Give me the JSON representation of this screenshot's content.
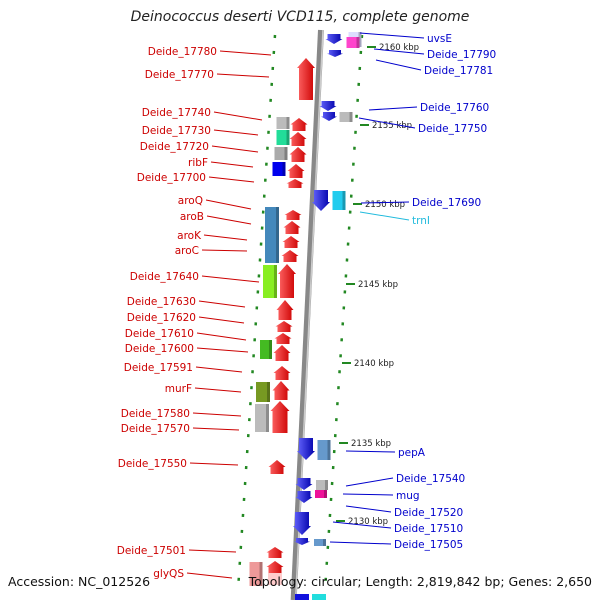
{
  "title": "Deinococcus deserti VCD115, complete genome",
  "accession": "Accession: NC_012526",
  "topology": "Topology: circular; Length: 2,819,842 bp; Genes: 2,650",
  "colors": {
    "plus_label": "#cc0000",
    "minus_label": "#0000cc",
    "trna_label": "#22bbdd",
    "plus_arrow": "#ee1111",
    "minus_arrow": "#1111dd",
    "backbone": "#888888",
    "tick": "#228822",
    "ruler": "#222222"
  },
  "scale_labels": [
    "2160 kbp",
    "2155 kbp",
    "2150 kbp",
    "2145 kbp",
    "2140 kbp",
    "2135 kbp",
    "2130 kbp"
  ],
  "plus_labels": [
    "Deide_17780",
    "Deide_17770",
    "Deide_17740",
    "Deide_17730",
    "Deide_17720",
    "ribF",
    "Deide_17700",
    "aroQ",
    "aroB",
    "aroK",
    "aroC",
    "Deide_17640",
    "Deide_17630",
    "Deide_17620",
    "Deide_17610",
    "Deide_17600",
    "Deide_17591",
    "murF",
    "Deide_17580",
    "Deide_17570",
    "Deide_17550",
    "Deide_17501",
    "glyQS"
  ],
  "minus_labels": [
    "uvsE",
    "Deide_17790",
    "Deide_17781",
    "Deide_17760",
    "Deide_17750",
    "Deide_17690",
    "trnI",
    "pepA",
    "Deide_17540",
    "mug",
    "Deide_17520",
    "Deide_17510",
    "Deide_17505"
  ]
}
